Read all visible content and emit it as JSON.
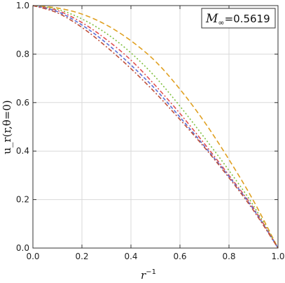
{
  "chart_data": {
    "type": "line",
    "xlabel_base": "r",
    "xlabel_sup": "−1",
    "ylabel": "u_r(r,θ=0)",
    "xlim": [
      0,
      1
    ],
    "ylim": [
      0,
      1
    ],
    "xticks": [
      "0.0",
      "0.2",
      "0.4",
      "0.6",
      "0.8",
      "1.0"
    ],
    "yticks": [
      "0.0",
      "0.2",
      "0.4",
      "0.6",
      "0.8",
      "1.0"
    ],
    "grid": true,
    "annotation": {
      "main": "M",
      "sub": "∞",
      "value": "=0.5619",
      "placement": "top-right"
    },
    "series": [
      {
        "color": "#e0a020",
        "dash": "long",
        "x": [
          0,
          0.1,
          0.2,
          0.3,
          0.4,
          0.5,
          0.6,
          0.7,
          0.8,
          0.9,
          1.0
        ],
        "y": [
          1.0,
          0.99,
          0.965,
          0.92,
          0.855,
          0.77,
          0.655,
          0.52,
          0.365,
          0.195,
          0.0
        ]
      },
      {
        "color": "#7fbf3f",
        "dash": "dot",
        "x": [
          0,
          0.1,
          0.2,
          0.3,
          0.4,
          0.5,
          0.6,
          0.7,
          0.8,
          0.9,
          1.0
        ],
        "y": [
          1.0,
          0.985,
          0.945,
          0.885,
          0.805,
          0.705,
          0.585,
          0.455,
          0.32,
          0.175,
          0.0
        ]
      },
      {
        "color": "#e05050",
        "dash": "dashdot",
        "x": [
          0,
          0.1,
          0.2,
          0.3,
          0.4,
          0.5,
          0.6,
          0.7,
          0.8,
          0.9,
          1.0
        ],
        "y": [
          1.0,
          0.98,
          0.93,
          0.86,
          0.775,
          0.67,
          0.555,
          0.43,
          0.3,
          0.165,
          0.0
        ]
      },
      {
        "color": "#5b6fd6",
        "dash": "dash",
        "x": [
          0,
          0.1,
          0.2,
          0.3,
          0.4,
          0.5,
          0.6,
          0.7,
          0.8,
          0.9,
          1.0
        ],
        "y": [
          1.0,
          0.975,
          0.92,
          0.845,
          0.755,
          0.655,
          0.54,
          0.42,
          0.295,
          0.16,
          0.0
        ]
      },
      {
        "color": "#c0503a",
        "dash": "dashdot",
        "x": [
          0,
          0.1,
          0.2,
          0.3,
          0.4,
          0.5,
          0.6,
          0.7,
          0.8,
          0.9,
          1.0
        ],
        "y": [
          1.0,
          0.97,
          0.91,
          0.83,
          0.74,
          0.64,
          0.53,
          0.415,
          0.29,
          0.155,
          0.0
        ]
      }
    ]
  }
}
